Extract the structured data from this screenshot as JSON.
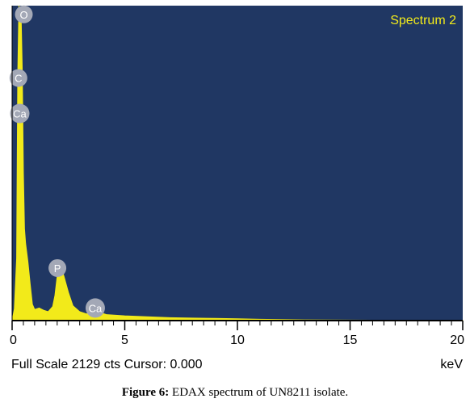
{
  "caption": {
    "prefix": "Figure 6:",
    "text": "EDAX spectrum of UN8211 isolate."
  },
  "status": {
    "full_scale": "Full Scale 2129 cts Cursor: 0.000",
    "unit": "keV"
  },
  "colors": {
    "plot_background": "#203763",
    "spectrum": "#f2ea1a",
    "peak_marker": "#a3a8b6",
    "frame": "#000000"
  },
  "chart_data": {
    "type": "area",
    "title": "Spectrum 2",
    "xlabel": "keV",
    "ylabel": "",
    "xlim": [
      0,
      20
    ],
    "ylim": [
      0,
      2129
    ],
    "grid": false,
    "x_ticks": [
      0,
      5,
      10,
      15,
      20
    ],
    "x_tick_labels": [
      "0",
      "5",
      "10",
      "15",
      "20"
    ],
    "series": [
      {
        "x": [
          0.0,
          0.1,
          0.2,
          0.25,
          0.3,
          0.35,
          0.4,
          0.45,
          0.5,
          0.55,
          0.6,
          0.7,
          0.8,
          0.9,
          1.0,
          1.2,
          1.4,
          1.6,
          1.8,
          1.9,
          2.0,
          2.1,
          2.15,
          2.3,
          2.5,
          2.7,
          3.0,
          3.3,
          3.5,
          3.7,
          3.9,
          4.2,
          5.0,
          6.0,
          7.0,
          8.0,
          9.0,
          10.0,
          11.0,
          12.0,
          13.0,
          14.0,
          16.0,
          18.0,
          20.0
        ],
        "y": [
          0,
          80,
          420,
          1650,
          2129,
          1980,
          2060,
          1700,
          1000,
          620,
          520,
          400,
          250,
          110,
          75,
          85,
          70,
          60,
          95,
          170,
          300,
          360,
          370,
          300,
          190,
          100,
          60,
          45,
          55,
          85,
          55,
          40,
          32,
          26,
          20,
          17,
          15,
          12,
          9,
          7,
          5,
          4,
          3,
          2,
          1
        ]
      }
    ],
    "peak_labels": [
      {
        "label": "O",
        "x": 0.52,
        "y": 2070
      },
      {
        "label": "C",
        "x": 0.28,
        "y": 1640
      },
      {
        "label": "Ca",
        "x": 0.34,
        "y": 1400
      },
      {
        "label": "P",
        "x": 2.01,
        "y": 355
      },
      {
        "label": "Ca",
        "x": 3.69,
        "y": 85
      }
    ]
  }
}
